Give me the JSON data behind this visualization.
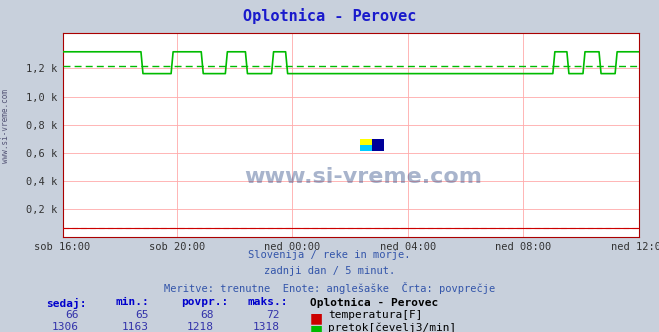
{
  "title": "Oplotnica - Perovec",
  "title_color": "#1a1acc",
  "bg_color": "#c8d0dc",
  "plot_bg_color": "#ffffff",
  "grid_color": "#ffaaaa",
  "xlabel_ticks": [
    "sob 16:00",
    "sob 20:00",
    "ned 00:00",
    "ned 04:00",
    "ned 08:00",
    "ned 12:00"
  ],
  "xtick_positions_norm": [
    0.0,
    0.2,
    0.4,
    0.6,
    0.8,
    1.0
  ],
  "ytick_labels": [
    "0,2 k",
    "0,4 k",
    "0,6 k",
    "0,8 k",
    "1,0 k",
    "1,2 k"
  ],
  "ytick_values": [
    200,
    400,
    600,
    800,
    1000,
    1200
  ],
  "ylim": [
    0,
    1450
  ],
  "n_points": 288,
  "temp_color": "#cc0000",
  "flow_color": "#00bb00",
  "avg_flow_value": 1218,
  "avg_temp_value": 68,
  "flow_high": 1318,
  "flow_low": 1163,
  "temp_value": 66,
  "subtitle1": "Slovenija / reke in morje.",
  "subtitle2": "zadnji dan / 5 minut.",
  "subtitle3": "Meritve: trenutne  Enote: anglešaške  Črta: povprečje",
  "legend_title": "Oplotnica - Perovec",
  "legend_temp_label": "temperatura[F]",
  "legend_flow_label": "pretok[čevelj3/min]",
  "legend_temp_color": "#cc0000",
  "legend_flow_color": "#00bb00",
  "stats_headers": [
    "sedaj:",
    "min.:",
    "povpr.:",
    "maks.:"
  ],
  "stats_temp": [
    66,
    65,
    68,
    72
  ],
  "stats_flow": [
    1306,
    1163,
    1218,
    1318
  ],
  "left_label": "www.si-vreme.com",
  "watermark": "www.si-vreme.com"
}
